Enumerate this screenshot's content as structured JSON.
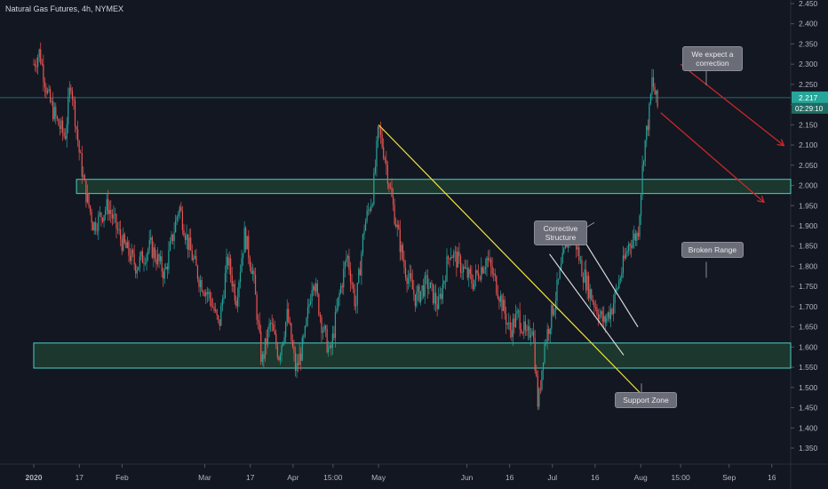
{
  "header": {
    "title": "Natural Gas Futures, 4h, NYMEX"
  },
  "colors": {
    "background": "#131722",
    "up": "#26a69a",
    "down": "#ef5350",
    "zone_fill": "#1e3d2f",
    "zone_border": "#4dd0c4",
    "trend_yellow": "#f5e33a",
    "channel_white": "#d8d8d8",
    "arrow_red": "#c62828",
    "price_line": "#26a69a"
  },
  "chart_data": {
    "type": "candlestick",
    "y_axis": {
      "range": [
        1.34,
        2.46
      ],
      "ticks": [
        "2.450",
        "2.400",
        "2.350",
        "2.300",
        "2.250",
        "2.200",
        "2.150",
        "2.100",
        "2.050",
        "2.000",
        "1.950",
        "1.900",
        "1.850",
        "1.800",
        "1.750",
        "1.700",
        "1.650",
        "1.600",
        "1.550",
        "1.500",
        "1.450",
        "1.400",
        "1.350"
      ]
    },
    "x_axis": {
      "range": [
        "2020-01-01",
        "2020-09-22"
      ],
      "ticks": [
        {
          "date": "2020-01-01",
          "label": "2020"
        },
        {
          "date": "2020-01-17",
          "label": "17"
        },
        {
          "date": "2020-02-01",
          "label": "Feb"
        },
        {
          "date": "2020-03-01",
          "label": "Mar"
        },
        {
          "date": "2020-03-17",
          "label": "17"
        },
        {
          "date": "2020-04-01",
          "label": "Apr"
        },
        {
          "date": "2020-04-15",
          "label": "15:00"
        },
        {
          "date": "2020-05-01",
          "label": "May"
        },
        {
          "date": "2020-06-01",
          "label": "Jun"
        },
        {
          "date": "2020-06-16",
          "label": "16"
        },
        {
          "date": "2020-07-01",
          "label": "Jul"
        },
        {
          "date": "2020-07-16",
          "label": "16"
        },
        {
          "date": "2020-08-01",
          "label": "Aug"
        },
        {
          "date": "2020-08-15",
          "label": "15:00"
        },
        {
          "date": "2020-09-01",
          "label": "Sep"
        },
        {
          "date": "2020-09-16",
          "label": "16"
        }
      ]
    },
    "price_path": [
      [
        "2020-01-01",
        2.3
      ],
      [
        "2020-01-03",
        2.33
      ],
      [
        "2020-01-06",
        2.22
      ],
      [
        "2020-01-09",
        2.16
      ],
      [
        "2020-01-12",
        2.12
      ],
      [
        "2020-01-14",
        2.26
      ],
      [
        "2020-01-17",
        2.08
      ],
      [
        "2020-01-19",
        1.99
      ],
      [
        "2020-01-22",
        1.9
      ],
      [
        "2020-01-27",
        1.95
      ],
      [
        "2020-02-01",
        1.86
      ],
      [
        "2020-02-06",
        1.8
      ],
      [
        "2020-02-11",
        1.85
      ],
      [
        "2020-02-16",
        1.78
      ],
      [
        "2020-02-21",
        1.95
      ],
      [
        "2020-02-24",
        1.86
      ],
      [
        "2020-02-28",
        1.77
      ],
      [
        "2020-03-03",
        1.72
      ],
      [
        "2020-03-06",
        1.65
      ],
      [
        "2020-03-09",
        1.82
      ],
      [
        "2020-03-12",
        1.72
      ],
      [
        "2020-03-15",
        1.88
      ],
      [
        "2020-03-18",
        1.78
      ],
      [
        "2020-03-21",
        1.56
      ],
      [
        "2020-03-24",
        1.66
      ],
      [
        "2020-03-27",
        1.58
      ],
      [
        "2020-03-30",
        1.68
      ],
      [
        "2020-04-02",
        1.54
      ],
      [
        "2020-04-05",
        1.62
      ],
      [
        "2020-04-08",
        1.78
      ],
      [
        "2020-04-11",
        1.66
      ],
      [
        "2020-04-14",
        1.58
      ],
      [
        "2020-04-17",
        1.72
      ],
      [
        "2020-04-20",
        1.83
      ],
      [
        "2020-04-23",
        1.7
      ],
      [
        "2020-04-26",
        1.9
      ],
      [
        "2020-04-29",
        1.98
      ],
      [
        "2020-05-01",
        2.14
      ],
      [
        "2020-05-03",
        2.08
      ],
      [
        "2020-05-06",
        1.95
      ],
      [
        "2020-05-10",
        1.8
      ],
      [
        "2020-05-14",
        1.72
      ],
      [
        "2020-05-18",
        1.76
      ],
      [
        "2020-05-22",
        1.7
      ],
      [
        "2020-05-26",
        1.84
      ],
      [
        "2020-05-30",
        1.8
      ],
      [
        "2020-06-03",
        1.76
      ],
      [
        "2020-06-08",
        1.82
      ],
      [
        "2020-06-12",
        1.74
      ],
      [
        "2020-06-16",
        1.64
      ],
      [
        "2020-06-19",
        1.68
      ],
      [
        "2020-06-22",
        1.62
      ],
      [
        "2020-06-24",
        1.66
      ],
      [
        "2020-06-26",
        1.45
      ],
      [
        "2020-06-28",
        1.6
      ],
      [
        "2020-07-02",
        1.72
      ],
      [
        "2020-07-06",
        1.86
      ],
      [
        "2020-07-08",
        1.9
      ],
      [
        "2020-07-11",
        1.8
      ],
      [
        "2020-07-15",
        1.72
      ],
      [
        "2020-07-19",
        1.66
      ],
      [
        "2020-07-22",
        1.7
      ],
      [
        "2020-07-25",
        1.78
      ],
      [
        "2020-07-28",
        1.86
      ],
      [
        "2020-07-31",
        1.88
      ],
      [
        "2020-08-02",
        2.08
      ],
      [
        "2020-08-04",
        2.18
      ],
      [
        "2020-08-05",
        2.26
      ],
      [
        "2020-08-07",
        2.19
      ]
    ],
    "last_price": {
      "value": 2.217,
      "label": "2.217",
      "timer": "02:29:10"
    },
    "zones": [
      {
        "name": "resistance-zone",
        "from": 1.98,
        "to": 2.015,
        "x_start": "2020-01-16"
      },
      {
        "name": "support-zone",
        "from": 1.548,
        "to": 1.61,
        "x_start": "2020-01-01"
      }
    ],
    "trendlines": [
      {
        "name": "yellow-trendline",
        "color": "trend_yellow",
        "p1": [
          "2020-05-01",
          2.15
        ],
        "p2": [
          "2020-08-01",
          1.485
        ]
      },
      {
        "name": "channel-line-upper",
        "color": "channel_white",
        "p1": [
          "2020-07-08",
          1.91
        ],
        "p2": [
          "2020-07-31",
          1.65
        ]
      },
      {
        "name": "channel-line-lower",
        "color": "channel_white",
        "p1": [
          "2020-06-30",
          1.83
        ],
        "p2": [
          "2020-07-26",
          1.58
        ]
      }
    ],
    "arrows": [
      {
        "name": "red-arrow-1",
        "p1": [
          "2020-08-15",
          2.3
        ],
        "p2": [
          "2020-09-20",
          2.1
        ]
      },
      {
        "name": "red-arrow-2",
        "p1": [
          "2020-08-08",
          2.18
        ],
        "p2": [
          "2020-09-13",
          1.96
        ]
      }
    ],
    "annotations": [
      {
        "name": "callout-expect-correction",
        "text": "We expect a correction",
        "anchor": [
          "2020-08-24",
          2.34
        ],
        "pointer": "down"
      },
      {
        "name": "callout-broken-range",
        "text": "Broken Range",
        "anchor": [
          "2020-08-24",
          1.855
        ],
        "pointer": "down"
      },
      {
        "name": "callout-corrective-structure",
        "text": "Corrective Structure",
        "anchor": [
          "2020-07-02",
          1.895
        ],
        "pointer": "right"
      },
      {
        "name": "callout-support-zone",
        "text": "Support Zone",
        "anchor": [
          "2020-07-31",
          1.51
        ],
        "pointer": "up"
      }
    ]
  }
}
